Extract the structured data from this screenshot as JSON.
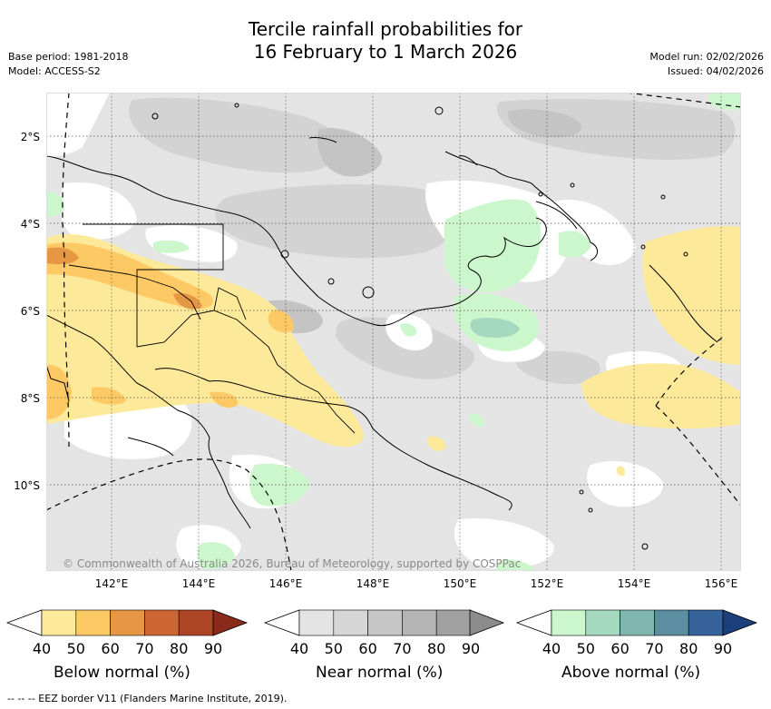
{
  "title": {
    "line1": "Tercile rainfall probabilities for",
    "line2": "16 February to 1 March 2026"
  },
  "meta": {
    "base_period": "Base period: 1981-2018",
    "model": "Model: ACCESS-S2",
    "model_run": "Model run: 02/02/2026",
    "issued": "Issued: 04/02/2026"
  },
  "map": {
    "lat_labels": [
      "2°S",
      "4°S",
      "6°S",
      "8°S",
      "10°S"
    ],
    "lon_labels": [
      "142°E",
      "144°E",
      "146°E",
      "148°E",
      "150°E",
      "152°E",
      "154°E",
      "156°E"
    ],
    "lat_values": [
      -2,
      -4,
      -6,
      -8,
      -10
    ],
    "lon_values": [
      142,
      144,
      146,
      148,
      150,
      152,
      154,
      156
    ],
    "extent": {
      "lon_min": 140.0,
      "lon_max": 156.5,
      "lat_min": -12.0,
      "lat_max": -1.0
    },
    "copyright": "© Commonwealth of Australia 2026, Bureau of Meteorology, supported by COSPPac"
  },
  "legends": [
    {
      "title": "Below normal (%)",
      "ticks": [
        "40",
        "50",
        "60",
        "70",
        "80",
        "90"
      ],
      "colors": [
        "#fde99a",
        "#fcc964",
        "#e59744",
        "#cd6631",
        "#ad4526",
        "#8a2a1a"
      ]
    },
    {
      "title": "Near normal (%)",
      "ticks": [
        "40",
        "50",
        "60",
        "70",
        "80",
        "90"
      ],
      "colors": [
        "#e4e4e4",
        "#d6d6d6",
        "#c6c6c6",
        "#b4b4b4",
        "#a1a1a1",
        "#8c8c8c"
      ]
    },
    {
      "title": "Above normal (%)",
      "ticks": [
        "40",
        "50",
        "60",
        "70",
        "80",
        "90"
      ],
      "colors": [
        "#ccf7cc",
        "#a4d8bf",
        "#7fb6ae",
        "#5b8ea0",
        "#36639a",
        "#1b3f7a"
      ]
    }
  ],
  "eez_note": "--  --  -- EEZ border V11 (Flanders Marine Institute, 2019)."
}
